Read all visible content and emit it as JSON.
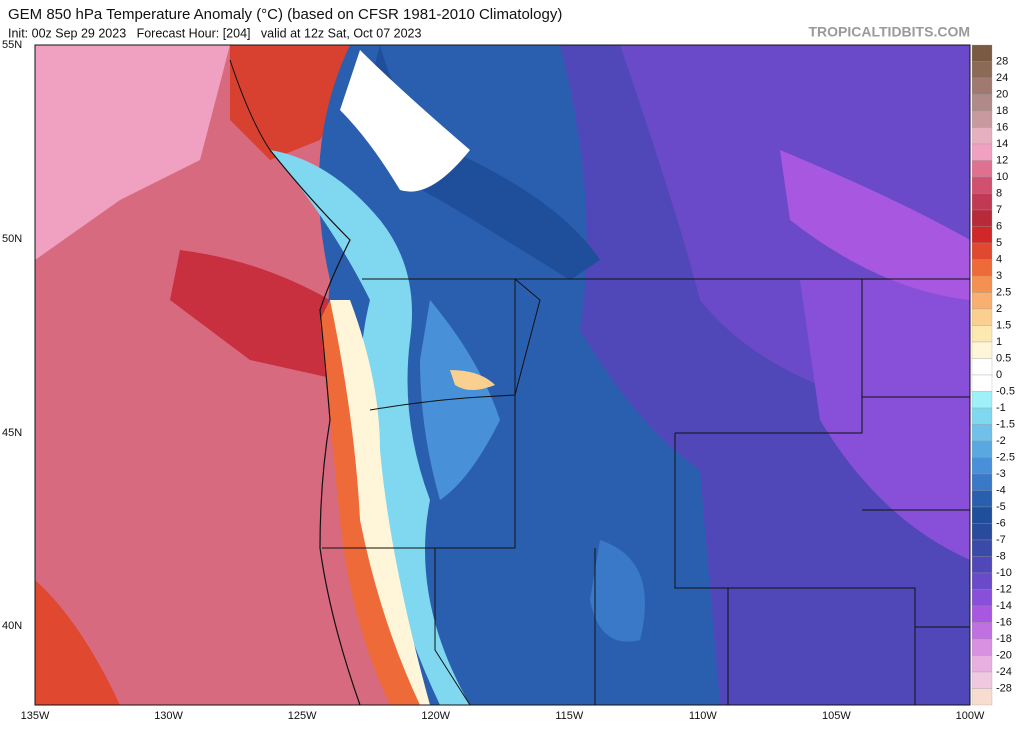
{
  "header": {
    "title": "GEM 850 hPa Temperature Anomaly (°C) (based on CFSR 1981-2010 Climatology)",
    "subtitle": "Init: 00z Sep 29 2023   Forecast Hour: [204]   valid at 12z Sat, Oct 07 2023",
    "brand": "TROPICALTIDBITS.COM"
  },
  "map": {
    "lat_labels": [
      "55N",
      "50N",
      "45N",
      "40N"
    ],
    "lon_labels": [
      "135W",
      "130W",
      "125W",
      "120W",
      "115W",
      "110W",
      "105W",
      "100W"
    ]
  },
  "colorbar": {
    "labels": [
      28,
      24,
      20,
      18,
      16,
      14,
      12,
      10,
      8,
      7,
      6,
      5,
      4,
      3,
      2.5,
      2,
      1.5,
      1,
      0.5,
      0,
      -0.5,
      -1,
      -1.5,
      -2,
      -2.5,
      -3,
      -4,
      -5,
      -6,
      -7,
      -8,
      -10,
      -12,
      -14,
      -16,
      -18,
      -20,
      -24,
      -28
    ],
    "colors": [
      "#7a5a40",
      "#8c6a55",
      "#a07a70",
      "#b08a88",
      "#c89aa0",
      "#e6b0c0",
      "#f0a0c0",
      "#e07090",
      "#d05070",
      "#c03a55",
      "#b82a3a",
      "#d02828",
      "#e04830",
      "#ee6a38",
      "#f49050",
      "#f8b070",
      "#fad090",
      "#fce8b0",
      "#fff5d8",
      "#ffffff",
      "#ffffff",
      "#a0f0f8",
      "#80d8f0",
      "#70c0ea",
      "#5aa8e0",
      "#4890d8",
      "#3a78c8",
      "#2a5fb0",
      "#1f4e9a",
      "#2a4a9a",
      "#3a4aa8",
      "#5048b8",
      "#6a4ac8",
      "#8850d8",
      "#a858e0",
      "#c070e0",
      "#d890e0",
      "#e8b0e0",
      "#f0c8e0",
      "#f8dcd0"
    ]
  }
}
